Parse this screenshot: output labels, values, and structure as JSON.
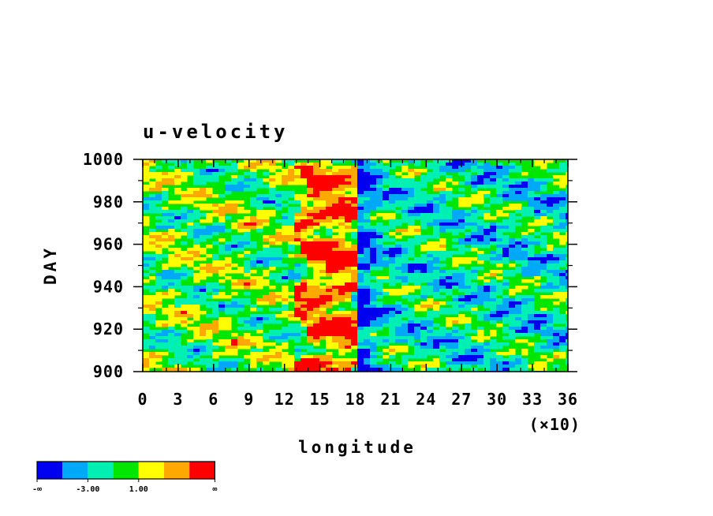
{
  "chart_data": {
    "type": "heatmap",
    "title": "u-velocity",
    "xlabel": "longitude",
    "ylabel": "DAY",
    "x_multiplier_label": "(×10)",
    "xlim": [
      0,
      36
    ],
    "ylim": [
      900,
      1000
    ],
    "x_ticks": [
      "0",
      "3",
      "6",
      "9",
      "12",
      "15",
      "18",
      "21",
      "24",
      "27",
      "30",
      "33",
      "36"
    ],
    "y_ticks": [
      "900",
      "920",
      "940",
      "960",
      "980",
      "1000"
    ],
    "colorbar": {
      "colors": [
        "#0000f0",
        "#00a8f8",
        "#00f0b4",
        "#00e600",
        "#ffff00",
        "#ffa800",
        "#ff0000"
      ],
      "labels": [
        "-∞",
        "-3.00",
        "1.00",
        "∞"
      ]
    },
    "features": [
      {
        "description": "strong positive band",
        "x_range": [
          13,
          18
        ],
        "y_range": [
          900,
          1000
        ],
        "level": "high"
      },
      {
        "description": "strong negative band",
        "x_range": [
          17.5,
          20
        ],
        "y_range": [
          900,
          1000
        ],
        "level": "low"
      }
    ]
  }
}
